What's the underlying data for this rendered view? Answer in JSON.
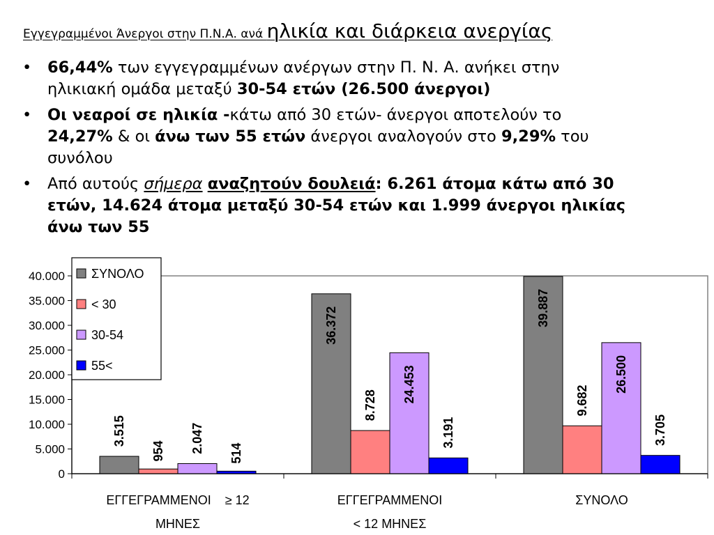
{
  "title": {
    "part1": "Εγγεγραμμένοι Άνεργοι στην Π.Ν.Α. ανά ",
    "part2": "ηλικία και διάρκεια ανεργίας"
  },
  "bullets": [
    {
      "l1_bold": "66,44%",
      "l1_text": " των  εγγεγραμμένων ανέργων στην Π. Ν. Α. ανήκει στην",
      "l2_text": "ηλικιακή ομάδα μεταξύ ",
      "l2_bold": "30-54 ετών (26.500 άνεργοι)"
    },
    {
      "l1_bold": "Οι νεαροί σε ηλικία -",
      "l1_text": "κάτω από 30 ετών- άνεργοι αποτελούν το",
      "l2_bold1": "24,27%",
      "l2_text1": " & οι ",
      "l2_bold2": "άνω των 55 ετών",
      "l2_text2": " άνεργοι αναλογούν στο ",
      "l2_bold3": "9,29%",
      "l2_text3": " του",
      "l3_text": "συνόλου"
    },
    {
      "l1_text": "Από αυτούς ",
      "l1_italic": "σήμερα",
      "l1_boldu": "αναζητούν δουλειά",
      "l1_bold": ": 6.261 άτομα κάτω από 30",
      "l2_bold": "ετών, 14.624 άτομα μεταξύ 30-54 ετών και 1.999 άνεργοι ηλικίας",
      "l3_bold": "άνω των 55"
    }
  ],
  "chart_data": {
    "type": "bar",
    "ylim": [
      0,
      40000
    ],
    "yticks": [
      0,
      5000,
      10000,
      15000,
      20000,
      25000,
      30000,
      35000,
      40000
    ],
    "ytick_labels": [
      "0",
      "5.000",
      "10.000",
      "15.000",
      "20.000",
      "25.000",
      "30.000",
      "35.000",
      "40.000"
    ],
    "categories": [
      [
        "ΕΓΓΕΓΡΑΜΜΕΝΟΙ    ≥ 12",
        "ΜΗΝΕΣ"
      ],
      [
        "ΕΓΓΕΓΡΑΜΜΕΝΟΙ",
        "< 12 ΜΗΝΕΣ"
      ],
      [
        "ΣΥΝΟΛΟ"
      ]
    ],
    "legend_position": "top-left",
    "series": [
      {
        "name": "ΣΥΝΟΛΟ",
        "color": "#808080",
        "values": [
          3515,
          36372,
          39887
        ],
        "labels": [
          "3.515",
          "36.372",
          "39.887"
        ]
      },
      {
        "name": "< 30",
        "color": "#ff8080",
        "values": [
          954,
          8728,
          9682
        ],
        "labels": [
          "954",
          "8.728",
          "9.682"
        ]
      },
      {
        "name": "30-54",
        "color": "#cc99ff",
        "values": [
          2047,
          24453,
          26500
        ],
        "labels": [
          "2.047",
          "24.453",
          "26.500"
        ]
      },
      {
        "name": "55<",
        "color": "#0000ff",
        "values": [
          514,
          3191,
          3705
        ],
        "labels": [
          "514",
          "3.191",
          "3.705"
        ]
      }
    ]
  }
}
